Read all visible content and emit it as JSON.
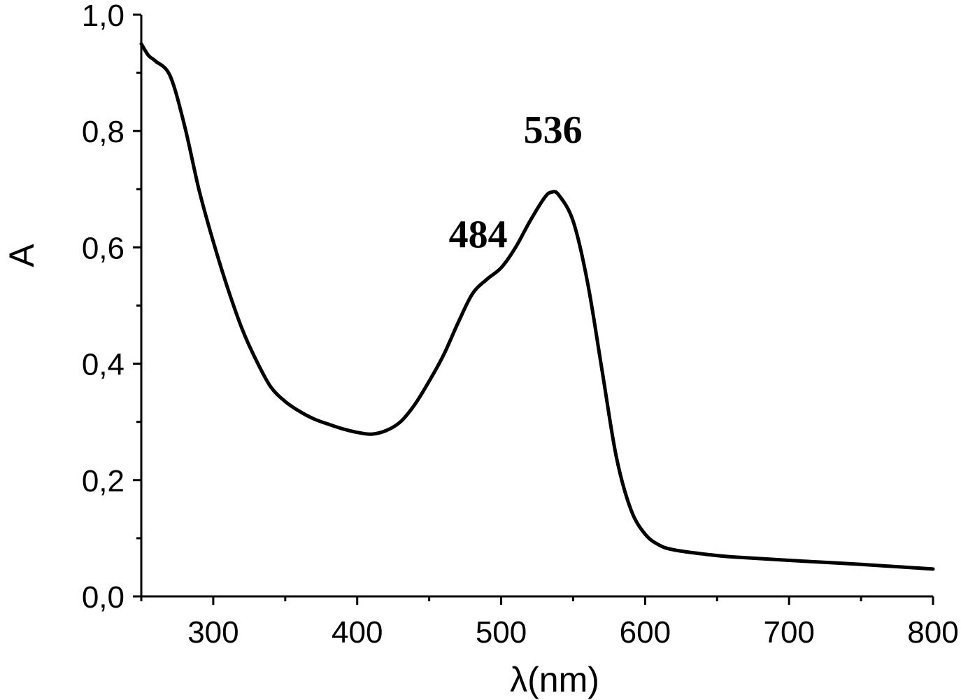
{
  "chart_data": {
    "type": "line",
    "xlabel": "λ(nm)",
    "ylabel": "A",
    "xlim": [
      250,
      800
    ],
    "ylim": [
      0.0,
      1.0
    ],
    "x_ticks": [
      300,
      400,
      500,
      600,
      700,
      800
    ],
    "x_tick_labels": [
      "300",
      "400",
      "500",
      "600",
      "700",
      "800"
    ],
    "x_minor_ticks": [
      250,
      350,
      450,
      550,
      650,
      750
    ],
    "y_ticks": [
      0.0,
      0.2,
      0.4,
      0.6,
      0.8,
      1.0
    ],
    "y_tick_labels": [
      "0,0",
      "0,2",
      "0,4",
      "0,6",
      "0,8",
      "1,0"
    ],
    "y_minor_ticks": [
      0.1,
      0.3,
      0.5,
      0.7,
      0.9
    ],
    "grid": false,
    "series": [
      {
        "color": "#000000",
        "x": [
          250,
          255,
          260,
          270,
          280,
          290,
          300,
          310,
          320,
          330,
          340,
          350,
          360,
          370,
          380,
          390,
          400,
          410,
          420,
          430,
          440,
          450,
          460,
          470,
          480,
          490,
          500,
          510,
          520,
          530,
          535,
          540,
          550,
          560,
          570,
          580,
          590,
          600,
          610,
          620,
          640,
          660,
          700,
          750,
          800
        ],
        "y": [
          0.95,
          0.93,
          0.92,
          0.895,
          0.81,
          0.7,
          0.61,
          0.53,
          0.46,
          0.405,
          0.36,
          0.335,
          0.318,
          0.305,
          0.296,
          0.288,
          0.282,
          0.279,
          0.285,
          0.3,
          0.33,
          0.37,
          0.415,
          0.47,
          0.52,
          0.545,
          0.565,
          0.6,
          0.645,
          0.685,
          0.695,
          0.69,
          0.645,
          0.54,
          0.39,
          0.24,
          0.15,
          0.107,
          0.088,
          0.08,
          0.073,
          0.068,
          0.062,
          0.055,
          0.047
        ]
      }
    ],
    "annotations": [
      {
        "text": "484",
        "x": 484,
        "y": 0.6
      },
      {
        "text": "536",
        "x": 536,
        "y": 0.78
      }
    ]
  }
}
